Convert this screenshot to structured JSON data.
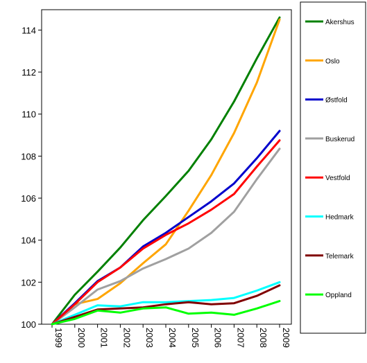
{
  "chart_data": {
    "type": "line",
    "title": "",
    "xlabel": "",
    "ylabel": "",
    "x": [
      "1999",
      "2000",
      "2001",
      "2002",
      "2003",
      "2004",
      "2005",
      "2006",
      "2007",
      "2008",
      "2009"
    ],
    "ylim": [
      100,
      115
    ],
    "yticks": [
      100,
      102,
      104,
      106,
      108,
      110,
      112,
      114
    ],
    "grid": false,
    "legend_position": "right",
    "series": [
      {
        "name": "Akershus",
        "color": "#008000",
        "values": [
          100,
          101.4,
          102.5,
          103.65,
          104.95,
          106.1,
          107.3,
          108.8,
          110.6,
          112.65,
          114.6
        ]
      },
      {
        "name": "Oslo",
        "color": "#FFA500",
        "values": [
          100,
          100.95,
          101.2,
          101.95,
          102.9,
          103.8,
          105.4,
          107.1,
          109.1,
          111.5,
          114.5
        ]
      },
      {
        "name": "Østfold",
        "color": "#0000CC",
        "values": [
          100,
          101.0,
          102.05,
          102.7,
          103.7,
          104.35,
          105.1,
          105.85,
          106.7,
          107.9,
          109.2
        ]
      },
      {
        "name": "Buskerud",
        "color": "#A0A0A0",
        "values": [
          100,
          100.8,
          101.65,
          102.05,
          102.65,
          103.1,
          103.6,
          104.35,
          105.35,
          106.9,
          108.35
        ]
      },
      {
        "name": "Vestfold",
        "color": "#FF0000",
        "values": [
          100,
          100.95,
          102.0,
          102.7,
          103.6,
          104.25,
          104.8,
          105.45,
          106.2,
          107.5,
          108.75
        ]
      },
      {
        "name": "Hedmark",
        "color": "#00FFFF",
        "values": [
          100,
          100.45,
          100.9,
          100.85,
          101.05,
          101.05,
          101.1,
          101.15,
          101.25,
          101.6,
          102.0
        ]
      },
      {
        "name": "Telemark",
        "color": "#800000",
        "values": [
          100,
          100.35,
          100.7,
          100.75,
          100.8,
          100.95,
          101.05,
          100.95,
          101.0,
          101.35,
          101.85
        ]
      },
      {
        "name": "Oppland",
        "color": "#00FF00",
        "values": [
          100,
          100.25,
          100.65,
          100.55,
          100.75,
          100.8,
          100.5,
          100.55,
          100.45,
          100.75,
          101.1
        ]
      }
    ]
  }
}
